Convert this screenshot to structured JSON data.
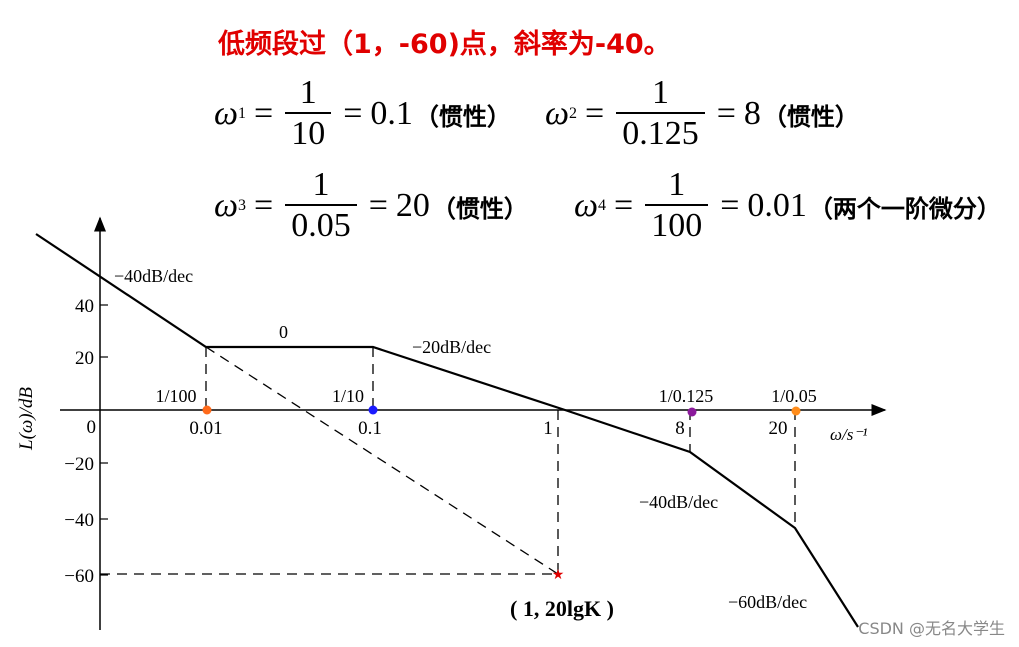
{
  "headline": "低频段过（1，-60)点，斜率为-40。",
  "equations": [
    {
      "symbol": "ω",
      "sub": "1",
      "num": "1",
      "den": "10",
      "result": "0.1",
      "note": "（惯性）"
    },
    {
      "symbol": "ω",
      "sub": "2",
      "num": "1",
      "den": "0.125",
      "result": "8",
      "note": "（惯性）"
    },
    {
      "symbol": "ω",
      "sub": "3",
      "num": "1",
      "den": "0.05",
      "result": "20",
      "note": "（惯性）"
    },
    {
      "symbol": "ω",
      "sub": "4",
      "num": "1",
      "den": "100",
      "result": "0.01",
      "note": "（两个一阶微分）"
    }
  ],
  "diagram": {
    "y_axis_label": "L(ω)/dB",
    "x_axis_label": "ω/s⁻¹",
    "y_ticks": [
      "40",
      "20",
      "0",
      "−20",
      "−40",
      "−60"
    ],
    "x_ticks": [
      "0.01",
      "0.1",
      "1",
      "8",
      "20"
    ],
    "top_labels": [
      "1/100",
      "1/10",
      "1/0.125",
      "1/0.05"
    ],
    "slope_labels": {
      "seg1": "−40dB/dec",
      "seg2": "0",
      "seg3": "−20dB/dec",
      "seg4": "−40dB/dec",
      "seg5": "−60dB/dec"
    },
    "point_label": "( 1, 20lgK )",
    "colors": {
      "dot1": "#ff6a1a",
      "dot2": "#1a1aff",
      "dot3": "#8b1a9b",
      "dot4": "#ff8c1a",
      "star": "#e00000"
    }
  },
  "watermark": "CSDN @无名大学生"
}
